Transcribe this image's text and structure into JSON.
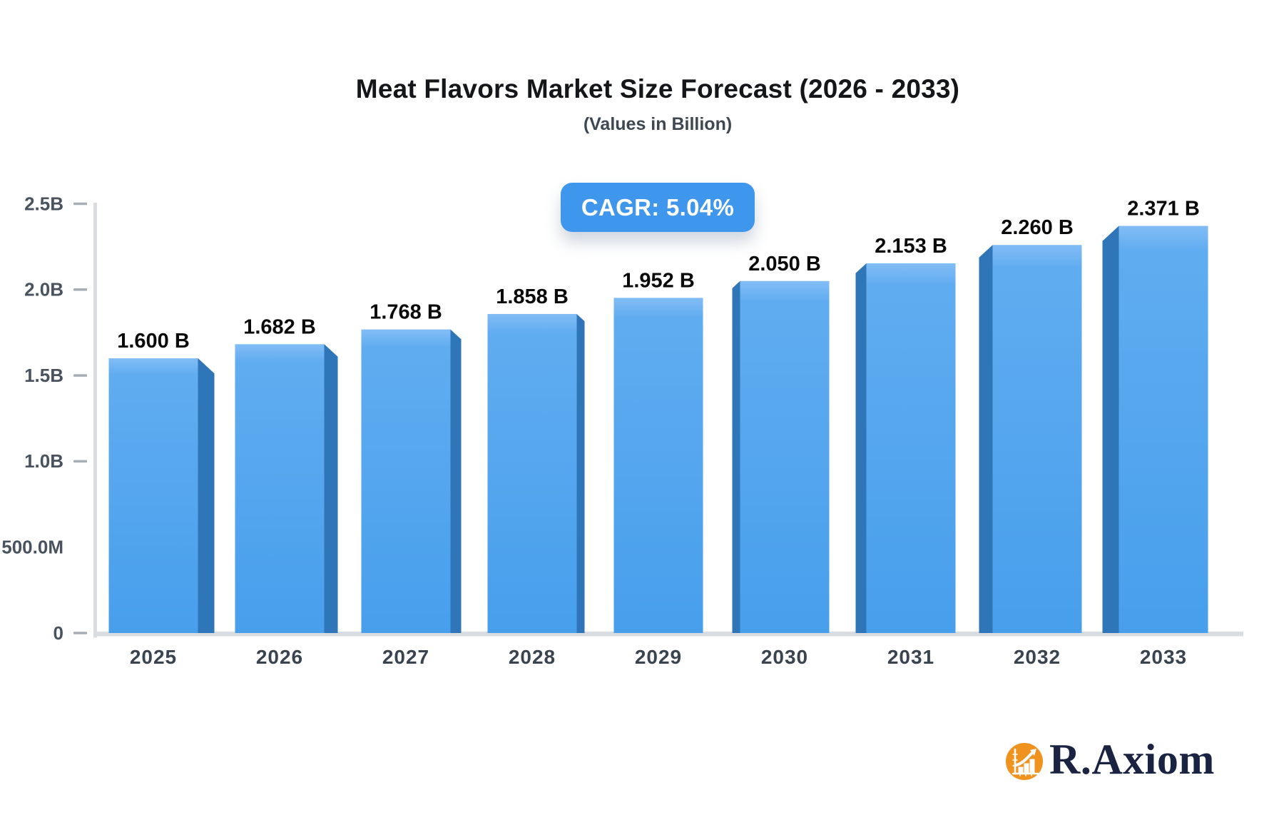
{
  "header": {
    "title": "Meat Flavors Market Size Forecast (2026 - 2033)",
    "subtitle": "(Values in Billion)"
  },
  "badge": {
    "text": "CAGR: 5.04%",
    "bg_color": "#3e96ed",
    "text_color": "#ffffff"
  },
  "logo": {
    "text": "R.Axiom",
    "icon": "bar-chart-growth-circle",
    "circle_color": "#f0921e",
    "glyph_color": "#ffffff",
    "text_color": "#1b2343"
  },
  "chart_data": {
    "type": "bar",
    "style": "3d-perspective-bars",
    "title": "Meat Flavors Market Size Forecast (2026 - 2033)",
    "subtitle": "(Values in Billion)",
    "cagr": "5.04%",
    "categories": [
      "2025",
      "2026",
      "2027",
      "2028",
      "2029",
      "2030",
      "2031",
      "2032",
      "2033"
    ],
    "values": [
      1.6,
      1.682,
      1.768,
      1.858,
      1.952,
      2.05,
      2.153,
      2.26,
      2.371
    ],
    "value_labels": [
      "1.600 B",
      "1.682 B",
      "1.768 B",
      "1.858 B",
      "1.952 B",
      "2.050 B",
      "2.153 B",
      "2.260 B",
      "2.371 B"
    ],
    "unit": "Billion",
    "xlabel": "",
    "ylabel": "",
    "ylim": [
      0,
      2.5
    ],
    "y_ticks": [
      {
        "value": 0.0,
        "label": "0",
        "dash": true
      },
      {
        "value": 0.5,
        "label": "500.0M",
        "dash": false
      },
      {
        "value": 1.0,
        "label": "1.0B",
        "dash": true
      },
      {
        "value": 1.5,
        "label": "1.5B",
        "dash": true
      },
      {
        "value": 2.0,
        "label": "2.0B",
        "dash": true
      },
      {
        "value": 2.5,
        "label": "2.5B",
        "dash": true
      }
    ],
    "grid": false,
    "legend": false,
    "colors": {
      "bar_face_top": "#82bdf5",
      "bar_face_mid": "#60acf0",
      "bar_face_bottom": "#479fec",
      "bar_side": "#2f76b9",
      "axis_line": "#d9dce1",
      "tick_dash": "#a5adb6",
      "x_label": "#3a4350",
      "y_label": "#49525f",
      "value_label": "#0a0a0a"
    }
  }
}
